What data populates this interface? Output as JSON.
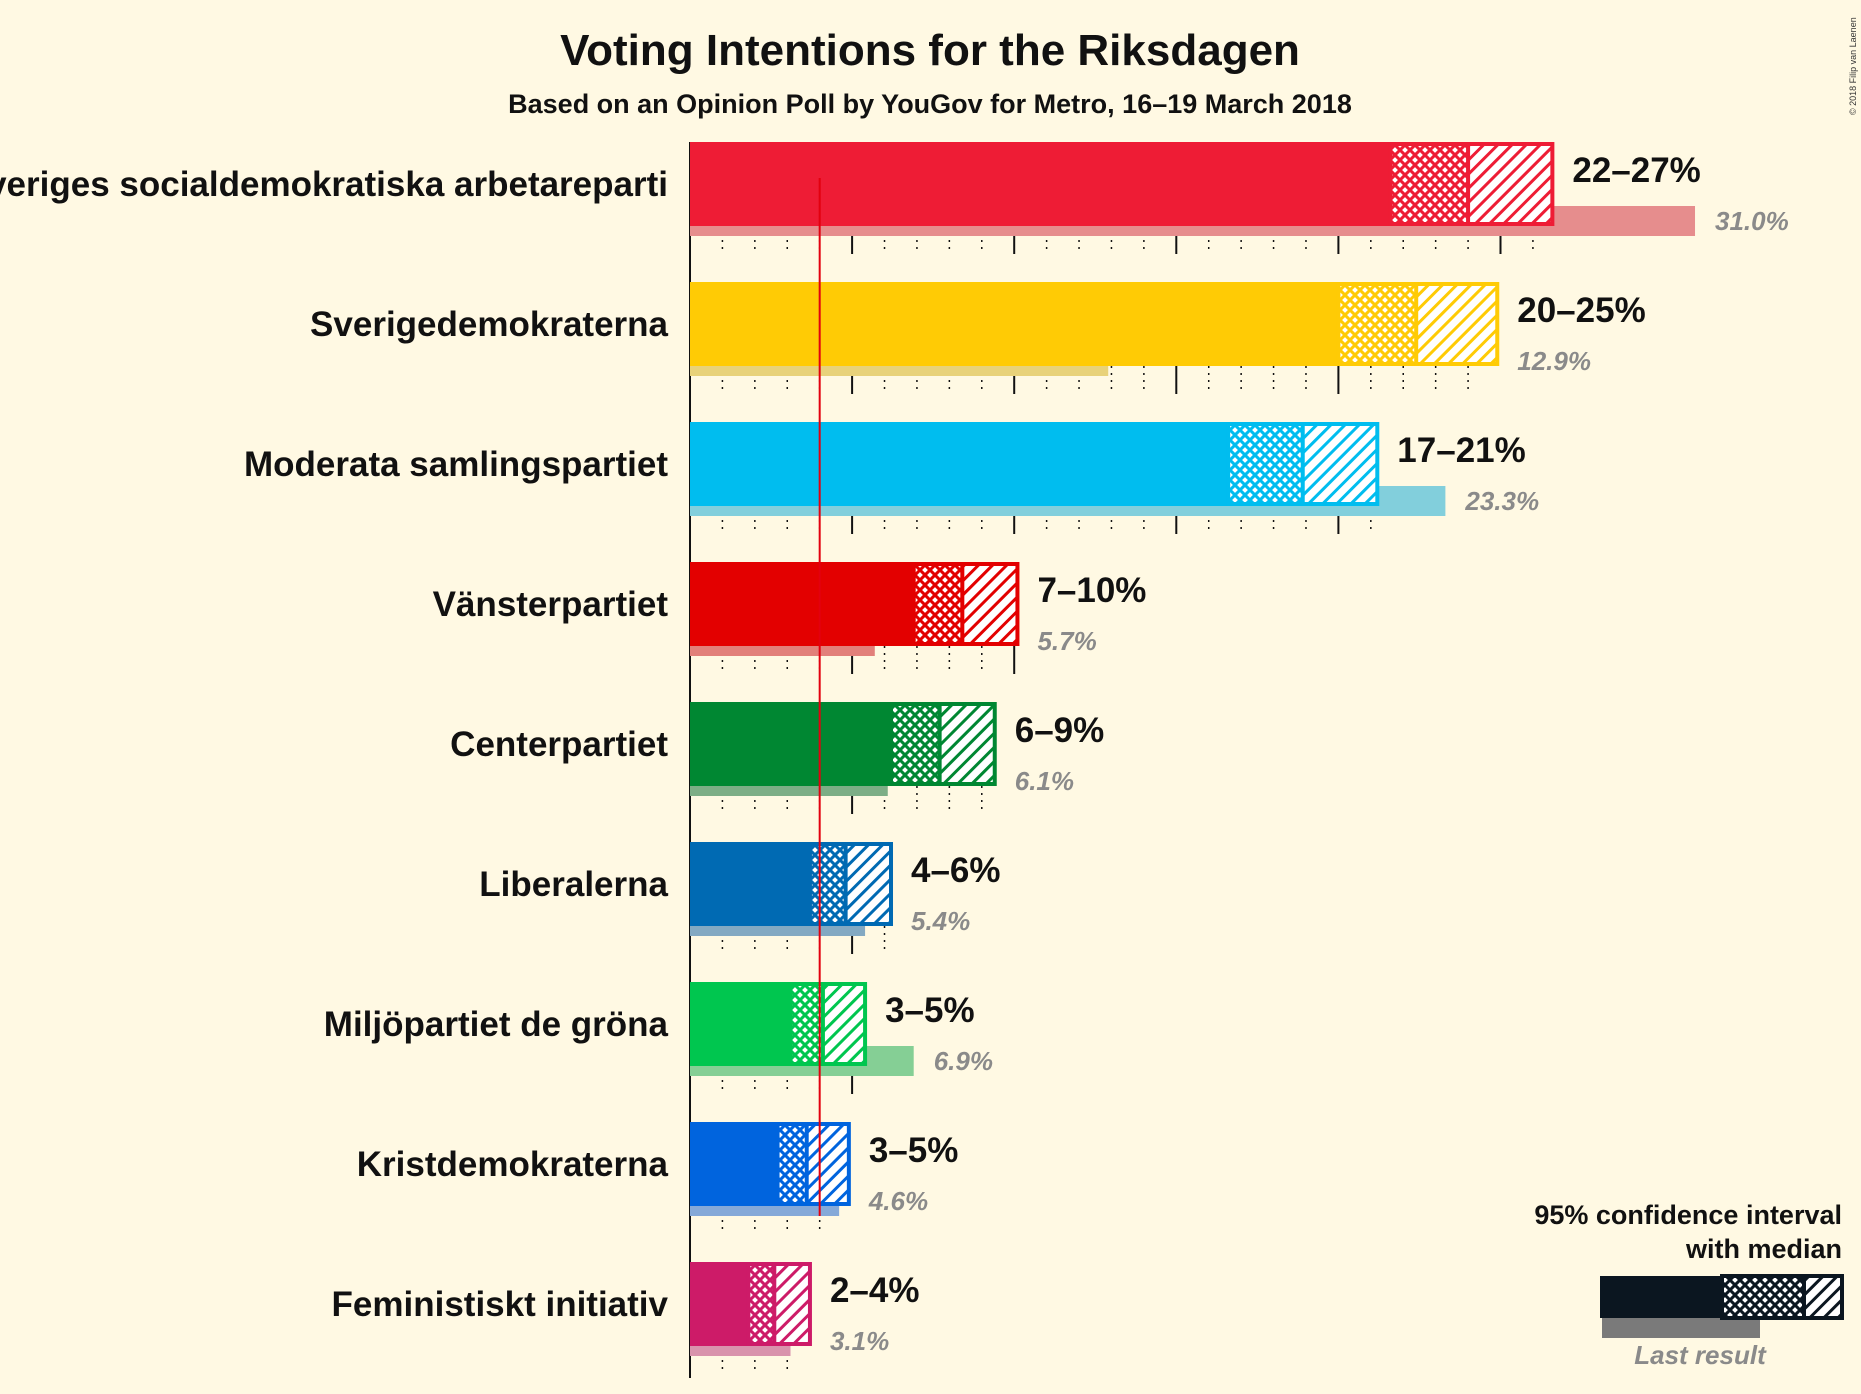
{
  "title": "Voting Intentions for the Riksdagen",
  "subtitle": "Based on an Opinion Poll by YouGov for Metro, 16–19 March 2018",
  "copyright": "© 2018 Filip van Laenen",
  "legend": {
    "line1": "95% confidence interval",
    "line2": "with median",
    "last_result": "Last result",
    "color": "#0b1620"
  },
  "chart_data": {
    "type": "bar",
    "orientation": "horizontal",
    "unit": "%",
    "threshold": 4,
    "categories": [
      "Sveriges socialdemokratiska arbetareparti",
      "Sverigedemokraterna",
      "Moderata samlingspartiet",
      "Vänsterpartiet",
      "Centerpartiet",
      "Liberalerna",
      "Miljöpartiet de gröna",
      "Kristdemokraterna",
      "Feministiskt initiativ"
    ],
    "parties": [
      {
        "name": "Sveriges socialdemokratiska arbetareparti",
        "low": 21.6,
        "median": 24.0,
        "high": 26.6,
        "range_label": "22–27%",
        "last": 31.0,
        "last_label": "31.0%",
        "color": "#ee1c35",
        "last_color": "#e68d8d"
      },
      {
        "name": "Sverigedemokraterna",
        "low": 20.0,
        "median": 22.4,
        "high": 24.9,
        "range_label": "20–25%",
        "last": 12.9,
        "last_label": "12.9%",
        "color": "#ffcb05",
        "last_color": "#e8d27a"
      },
      {
        "name": "Moderata samlingspartiet",
        "low": 16.6,
        "median": 18.9,
        "high": 21.2,
        "range_label": "17–21%",
        "last": 23.3,
        "last_label": "23.3%",
        "color": "#00bdef",
        "last_color": "#82cfdc"
      },
      {
        "name": "Vänsterpartiet",
        "low": 6.9,
        "median": 8.4,
        "high": 10.1,
        "range_label": "7–10%",
        "last": 5.7,
        "last_label": "5.7%",
        "color": "#e30000",
        "last_color": "#e2807a"
      },
      {
        "name": "Centerpartiet",
        "low": 6.2,
        "median": 7.7,
        "high": 9.4,
        "range_label": "6–9%",
        "last": 6.1,
        "last_label": "6.1%",
        "color": "#008732",
        "last_color": "#7dae86"
      },
      {
        "name": "Liberalerna",
        "low": 3.7,
        "median": 4.8,
        "high": 6.2,
        "range_label": "4–6%",
        "last": 5.4,
        "last_label": "5.4%",
        "color": "#006ab3",
        "last_color": "#83a9c2"
      },
      {
        "name": "Miljöpartiet de gröna",
        "low": 3.1,
        "median": 4.1,
        "high": 5.4,
        "range_label": "3–5%",
        "last": 6.9,
        "last_label": "6.9%",
        "color": "#00c64f",
        "last_color": "#85cf95"
      },
      {
        "name": "Kristdemokraterna",
        "low": 2.7,
        "median": 3.6,
        "high": 4.9,
        "range_label": "3–5%",
        "last": 4.6,
        "last_label": "4.6%",
        "color": "#0064de",
        "last_color": "#85a9d8"
      },
      {
        "name": "Feministiskt initiativ",
        "low": 1.8,
        "median": 2.6,
        "high": 3.7,
        "range_label": "2–4%",
        "last": 3.1,
        "last_label": "3.1%",
        "color": "#cd1b68",
        "last_color": "#d993ac"
      }
    ]
  }
}
